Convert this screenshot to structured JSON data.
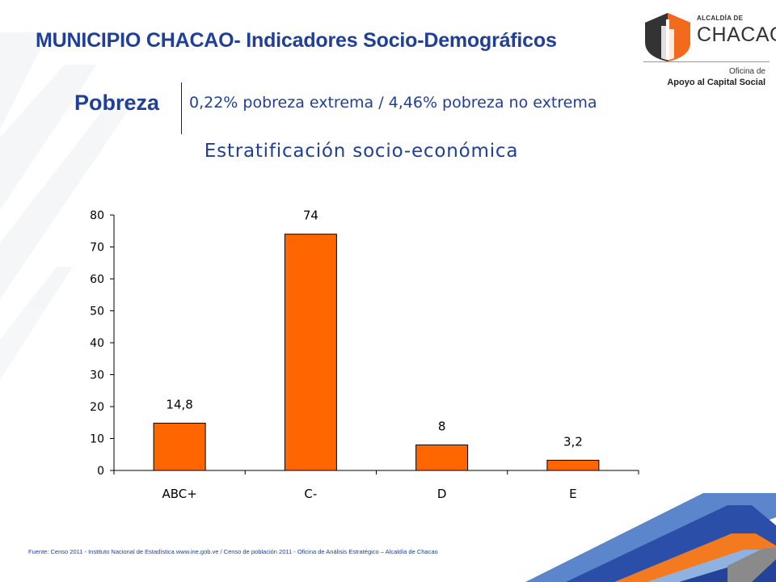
{
  "header": {
    "title": "MUNICIPIO CHACAO- Indicadores Socio-Demográficos"
  },
  "logo": {
    "top_text": "ALCALDÍA DE",
    "name": "CHACAO",
    "sub_line1": "Oficina de",
    "sub_line2": "Apoyo al Capital Social",
    "colors": {
      "orange": "#f26a1b",
      "dark": "#333333"
    }
  },
  "pobreza": {
    "label": "Pobreza",
    "text": "0,22% pobreza extrema / 4,46% pobreza no extrema"
  },
  "footnote": "Fuente: Censo 2011 - Instituto Nacional de Estadística www.ine.gob.ve / Censo de población 2011 - Oficina de Análisis Estratégico – Alcaldía de Chacao",
  "colors": {
    "title_blue": "#1f3f99",
    "bar_fill": "#ff6600",
    "bar_stroke": "#000000",
    "stripe_blue": "#2b4fa8",
    "stripe_light_blue": "#7ea2d8",
    "stripe_orange": "#f47a20",
    "stripe_gray": "#8a8a8a"
  },
  "chart_data": {
    "type": "bar",
    "title": "Estratificación socio-económica",
    "categories": [
      "ABC+",
      "C-",
      "D",
      "E"
    ],
    "values": [
      14.8,
      74,
      8,
      3.2
    ],
    "data_labels": [
      "14,8",
      "74",
      "8",
      "3,2"
    ],
    "ylim": [
      0,
      80
    ],
    "yticks": [
      0,
      10,
      20,
      30,
      40,
      50,
      60,
      70,
      80
    ],
    "ytick_labels": [
      "0",
      "10",
      "20",
      "30",
      "40",
      "50",
      "60",
      "70",
      "80"
    ],
    "xlabel": "",
    "ylabel": "",
    "grid": false,
    "legend": "none"
  }
}
